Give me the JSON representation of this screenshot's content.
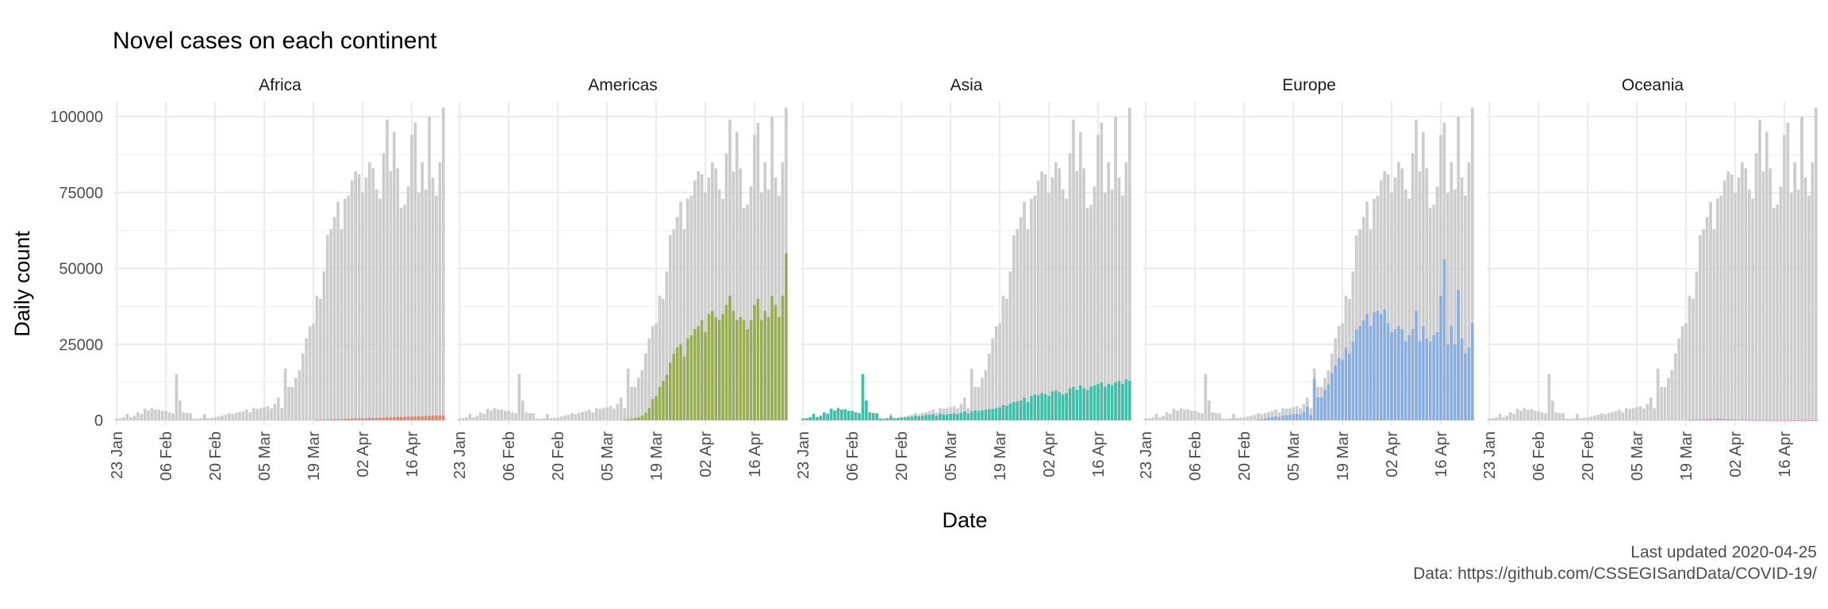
{
  "chart_data": {
    "type": "bar",
    "title": "Novel cases on each continent",
    "xlabel": "Date",
    "ylabel": "Daily count",
    "caption_lines": [
      "Last updated 2020-04-25",
      "Data: https://github.com/CSSEGISandData/COVID-19/"
    ],
    "ylim": [
      0,
      105000
    ],
    "y_ticks": [
      0,
      25000,
      50000,
      75000,
      100000
    ],
    "y_tick_labels": [
      "0",
      "25000",
      "50000",
      "75000",
      "100000"
    ],
    "x_tick_labels": [
      "23 Jan",
      "06 Feb",
      "20 Feb",
      "05 Mar",
      "19 Mar",
      "02 Apr",
      "16 Apr"
    ],
    "x_tick_day_index": [
      0,
      14,
      28,
      42,
      56,
      70,
      84
    ],
    "legend": "none",
    "grid": true,
    "dates_range": [
      "2020-01-23",
      "2020-04-25"
    ],
    "background_series_color": "#cccccc",
    "total_daily_cases": [
      600,
      700,
      1000,
      2100,
      1000,
      1500,
      2600,
      2100,
      3800,
      3200,
      4000,
      3500,
      3600,
      3100,
      3100,
      2600,
      2300,
      15200,
      6500,
      2600,
      2400,
      2300,
      600,
      500,
      700,
      2100,
      700,
      800,
      1000,
      1200,
      1500,
      1800,
      2300,
      2000,
      2400,
      2700,
      3000,
      3500,
      2600,
      4000,
      3800,
      4000,
      4300,
      4600,
      3900,
      5400,
      7500,
      4000,
      17000,
      11000,
      11000,
      14000,
      16500,
      22000,
      27000,
      31000,
      32000,
      41000,
      40000,
      49000,
      61000,
      63000,
      67000,
      72000,
      63000,
      73000,
      74000,
      79000,
      82000,
      81000,
      75000,
      80000,
      85000,
      83000,
      76000,
      73000,
      88000,
      99000,
      82000,
      95000,
      83000,
      70000,
      71000,
      77000,
      94000,
      98000,
      75000,
      85000,
      76000,
      100000,
      80000,
      74000,
      85000,
      103000
    ],
    "facets": [
      {
        "name": "Africa",
        "color": "#e8806a",
        "values": [
          0,
          0,
          0,
          0,
          0,
          0,
          0,
          0,
          0,
          0,
          0,
          0,
          0,
          0,
          0,
          0,
          0,
          0,
          0,
          0,
          0,
          0,
          0,
          0,
          0,
          0,
          0,
          0,
          0,
          0,
          0,
          0,
          0,
          0,
          0,
          0,
          0,
          0,
          0,
          0,
          0,
          0,
          0,
          0,
          0,
          0,
          0,
          0,
          0,
          0,
          0,
          0,
          0,
          0,
          0,
          0,
          0,
          100,
          150,
          200,
          250,
          300,
          350,
          400,
          400,
          450,
          500,
          550,
          600,
          600,
          650,
          700,
          750,
          800,
          800,
          850,
          900,
          950,
          1000,
          1050,
          1100,
          1100,
          1150,
          1200,
          1250,
          1300,
          1300,
          1350,
          1400,
          1450,
          1500,
          1500,
          1550,
          1600
        ]
      },
      {
        "name": "Americas",
        "color": "#97ad53",
        "values": [
          0,
          0,
          0,
          0,
          0,
          0,
          0,
          0,
          0,
          0,
          0,
          0,
          0,
          0,
          0,
          0,
          0,
          0,
          0,
          0,
          0,
          0,
          0,
          0,
          0,
          0,
          0,
          0,
          0,
          0,
          0,
          0,
          0,
          0,
          0,
          0,
          0,
          0,
          0,
          0,
          0,
          0,
          0,
          0,
          0,
          0,
          0,
          200,
          400,
          500,
          800,
          1000,
          1500,
          2500,
          4000,
          7000,
          8000,
          11000,
          13000,
          15000,
          19000,
          22000,
          24000,
          25000,
          21000,
          27000,
          28000,
          30000,
          31000,
          33000,
          29000,
          35000,
          36000,
          34000,
          33000,
          35000,
          38000,
          41000,
          36000,
          33000,
          34000,
          33000,
          30000,
          33000,
          38000,
          40000,
          33000,
          36000,
          34000,
          41000,
          38000,
          34000,
          41000,
          55000
        ]
      },
      {
        "name": "Asia",
        "color": "#40bfa8",
        "values": [
          600,
          700,
          1000,
          2100,
          1000,
          1500,
          2600,
          2100,
          3800,
          3200,
          4000,
          3500,
          3600,
          3100,
          3100,
          2600,
          2300,
          15200,
          6500,
          2600,
          2400,
          2300,
          600,
          500,
          700,
          1300,
          700,
          800,
          900,
          1000,
          1100,
          1200,
          1500,
          1300,
          1500,
          1700,
          1800,
          2000,
          1500,
          2200,
          1900,
          2000,
          2100,
          2300,
          2000,
          2500,
          2900,
          2200,
          3000,
          3200,
          3000,
          3300,
          3500,
          3600,
          3700,
          4000,
          4200,
          5000,
          4800,
          5500,
          6000,
          6200,
          6500,
          7500,
          6000,
          8000,
          8500,
          8200,
          9000,
          8700,
          8000,
          9500,
          9800,
          9300,
          8500,
          9000,
          10500,
          11000,
          10000,
          11500,
          10500,
          10000,
          11000,
          11500,
          12000,
          12500,
          11000,
          12000,
          11500,
          12500,
          13000,
          12000,
          13500,
          13000
        ]
      },
      {
        "name": "Europe",
        "color": "#88aee0",
        "values": [
          0,
          0,
          0,
          0,
          0,
          0,
          0,
          0,
          0,
          0,
          0,
          0,
          0,
          0,
          0,
          0,
          0,
          0,
          0,
          0,
          0,
          0,
          0,
          0,
          0,
          0,
          0,
          0,
          0,
          0,
          0,
          0,
          300,
          400,
          600,
          900,
          1100,
          1300,
          1100,
          1600,
          1700,
          1800,
          2000,
          2200,
          1900,
          2700,
          4400,
          1700,
          13600,
          7600,
          7500,
          10000,
          11800,
          15600,
          18000,
          20500,
          20000,
          24000,
          22000,
          26000,
          30000,
          31000,
          33000,
          35000,
          31000,
          35500,
          36000,
          35000,
          36500,
          32000,
          29000,
          30000,
          31000,
          30000,
          26000,
          28000,
          30000,
          36000,
          26000,
          31000,
          27000,
          26000,
          28000,
          29000,
          41000,
          53000,
          25000,
          31000,
          25000,
          43000,
          27000,
          22000,
          24000,
          32000
        ]
      },
      {
        "name": "Oceania",
        "color": "#d97ec9",
        "values": [
          0,
          0,
          0,
          0,
          0,
          0,
          0,
          0,
          0,
          0,
          0,
          0,
          0,
          0,
          0,
          0,
          0,
          0,
          0,
          0,
          0,
          0,
          0,
          0,
          0,
          0,
          0,
          0,
          0,
          0,
          0,
          0,
          0,
          0,
          0,
          0,
          0,
          0,
          0,
          0,
          0,
          0,
          0,
          0,
          0,
          0,
          0,
          0,
          0,
          0,
          0,
          0,
          0,
          0,
          0,
          0,
          0,
          100,
          150,
          200,
          300,
          350,
          400,
          450,
          350,
          500,
          450,
          400,
          350,
          300,
          250,
          250,
          200,
          150,
          100,
          100,
          50,
          50,
          50,
          50,
          30,
          20,
          20,
          20,
          20,
          20,
          10,
          10,
          10,
          10,
          10,
          10,
          10,
          10
        ]
      }
    ]
  }
}
